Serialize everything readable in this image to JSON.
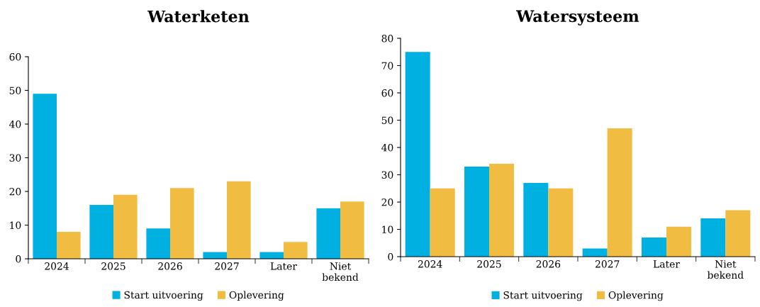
{
  "chart_data": [
    {
      "type": "bar",
      "title": "Waterketen",
      "categories": [
        "2024",
        "2025",
        "2026",
        "2027",
        "Later",
        "Niet bekend"
      ],
      "series": [
        {
          "name": "Start uitvoering",
          "color": "#00b0e0",
          "values": [
            49,
            16,
            9,
            2,
            2,
            15
          ]
        },
        {
          "name": "Oplevering",
          "color": "#f0bc42",
          "values": [
            8,
            19,
            21,
            23,
            5,
            17
          ]
        }
      ],
      "ylim": [
        0,
        60
      ],
      "yticks": [
        0,
        10,
        20,
        30,
        40,
        50,
        60
      ],
      "grid": false,
      "legend": "bottom"
    },
    {
      "type": "bar",
      "title": "Watersysteem",
      "categories": [
        "2024",
        "2025",
        "2026",
        "2027",
        "Later",
        "Niet bekend"
      ],
      "series": [
        {
          "name": "Start uitvoering",
          "color": "#00b0e0",
          "values": [
            75,
            33,
            27,
            3,
            7,
            14
          ]
        },
        {
          "name": "Oplevering",
          "color": "#f0bc42",
          "values": [
            25,
            34,
            25,
            47,
            11,
            17
          ]
        }
      ],
      "ylim": [
        0,
        80
      ],
      "yticks": [
        0,
        10,
        20,
        30,
        40,
        50,
        60,
        70,
        80
      ],
      "grid": false,
      "legend": "bottom"
    }
  ]
}
